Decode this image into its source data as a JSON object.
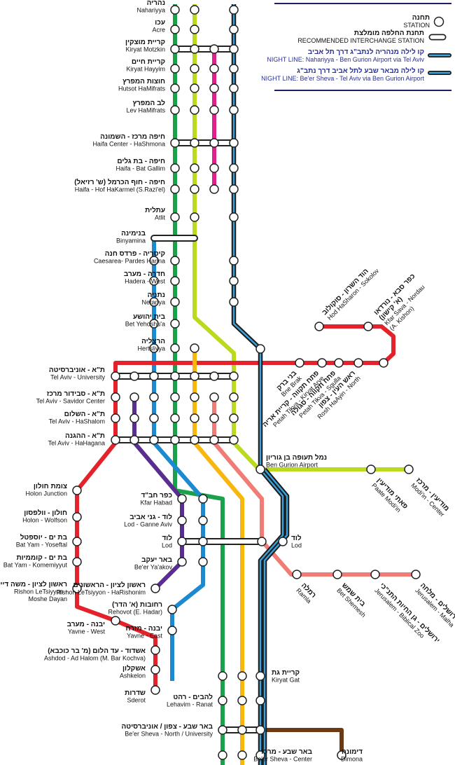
{
  "colors": {
    "green": "#1aa24a",
    "lime": "#b9da1d",
    "magenta": "#e0218c",
    "black": "#1c1c1c",
    "night_blue": "#3ea3dc",
    "blue": "#1c8ad0",
    "red": "#e3222b",
    "purple": "#5a2e91",
    "orange": "#f7b70d",
    "salmon": "#f07c75",
    "brown": "#6b3a12",
    "navy": "#1e2065"
  },
  "legend": {
    "station_he": "תחנה",
    "station_en": "STATION",
    "interchange_he": "תחנת החלפה מומלצת",
    "interchange_en": "RECOMMENDED INTERCHANGE STATION",
    "night1_he": "קו לילה מנהריה לנתב\"ג דרך תל אביב",
    "night1_en": "NIGHT LINE: Nahariyya - Ben Gurion Airport via Tel Aviv",
    "night2_he": "קו לילה מבאר שבע לתל אביב דרך נתב\"ג",
    "night2_en": "NIGHT LINE: Be'er Sheva - Tel Aviv via Ben Gurion Airport"
  },
  "stations": {
    "nahariya": {
      "he": "נהריה",
      "en": "Nahariyya"
    },
    "acre": {
      "he": "עכו",
      "en": "Acre"
    },
    "kiryat_motzkin": {
      "he": "קריית מוצקין",
      "en": "Kiryat Motzkin"
    },
    "kiryat_hayyim": {
      "he": "קריית חיים",
      "en": "Kiryat Hayyim"
    },
    "hutsot": {
      "he": "חוצות המפרץ",
      "en": "Hutsot HaMifrats"
    },
    "lev_hamifrats": {
      "he": "לב המפרץ",
      "en": "Lev HaMifrats"
    },
    "haifa_center": {
      "he": "חיפה מרכז - השמונה",
      "en": "Haifa Center - HaShmona"
    },
    "bat_gallim": {
      "he": "חיפה - בת גלים",
      "en": "Haifa - Bat Gallim"
    },
    "hof_hakarmel": {
      "he": "חיפה - חוף הכרמל (ש' רזיאל)",
      "en": "Haifa - Hof HaKarmel (S.Razi'el)"
    },
    "atlit": {
      "he": "עתלית",
      "en": "Atlit"
    },
    "binyamina": {
      "he": "בנימינה",
      "en": "Binyamina"
    },
    "caesarea": {
      "he": "קיסריה - פרדס חנה",
      "en": "Caesarea- Pardes Hanna"
    },
    "hadera": {
      "he": "חדרה - מערב",
      "en": "Hadera - West"
    },
    "netanya": {
      "he": "נתניה",
      "en": "Netanya"
    },
    "bet_yehoshua": {
      "he": "בית יהושע",
      "en": "Bet Yehoshu'a"
    },
    "herzliya": {
      "he": "הרצליה",
      "en": "Hertsliyya"
    },
    "ta_university": {
      "he": "ת\"א - אוניברסיטה",
      "en": "Tel Aviv - University"
    },
    "ta_savidor": {
      "he": "ת\"א - סבידור מרכז",
      "en": "Tel Aviv - Savidor Center"
    },
    "ta_hashalom": {
      "he": "ת\"א - השלום",
      "en": "Tel Aviv - HaShalom"
    },
    "ta_hahagana": {
      "he": "ת\"א - ההגנה",
      "en": "Tel Aviv - HaHagana"
    },
    "holon_junction": {
      "he": "צומת חולון",
      "en": "Holon Junction"
    },
    "holon_wolfson": {
      "he": "חולון - וולפסון",
      "en": "Holon - Wolfson"
    },
    "bat_yam_yoseftal": {
      "he": "בת ים - יוספטל",
      "en": "Bat Yam - Yoseftal"
    },
    "bat_yam_komemiyut": {
      "he": "בת ים - קוממיות",
      "en": "Bat Yam - Komemiyyut"
    },
    "rishon_moshe_dayan": {
      "he": "ראשון לציון - משה דיין",
      "en": "Rishon LeTsiyyon -",
      "en2": "Moshe Dayan"
    },
    "yavne_west": {
      "he": "יבנה - מערב",
      "en": "Yavne - West"
    },
    "ashdod": {
      "he": "אשדוד - עד הלום (מ' בר כוכבא)",
      "en": "Ashdod - Ad Halom (M. Bar Kochva)"
    },
    "ashkelon": {
      "he": "אשקלון",
      "en": "Ashkelon"
    },
    "sderot": {
      "he": "שדרות",
      "en": "Sderot"
    },
    "kfar_habad": {
      "he": "כפר חב\"ד",
      "en": "Kfar Habad"
    },
    "lod_ganne_aviv": {
      "he": "לוד - גני אביב",
      "en": "Lod - Ganne Aviv"
    },
    "lod_left": {
      "he": "לוד",
      "en": "Lod"
    },
    "beer_yaakov": {
      "he": "באר יעקב",
      "en": "Be'er Ya'akov"
    },
    "rishon_harishonim": {
      "he": "ראשון לציון - הראשונים",
      "en": "Rishon LeTsiyyon - HaRishonim"
    },
    "rehovot": {
      "he": "רחובות (א' הדר)",
      "en": "Rehovot (E. Hadar)"
    },
    "yavne_east": {
      "he": "יבנה - מזרח",
      "en": "Yavne - East"
    },
    "lehavim": {
      "he": "להבים - רהט",
      "en": "Lehavim - Ranat"
    },
    "beer_sheva_north": {
      "he": "באר שבע - צפון / אוניברסיטה",
      "en": "Be'er Sheva - North / University"
    },
    "beer_sheva_center": {
      "he": "באר שבע - מרכז",
      "en": "Be'er Sheva - Center"
    },
    "dimona": {
      "he": "דימונה",
      "en": "Dimona"
    },
    "kiryat_gat": {
      "he": "קריית גת",
      "en": "Kiryat Gat"
    },
    "lod_right": {
      "he": "לוד",
      "en": "Lod"
    },
    "ben_gurion": {
      "he": "נמל תעופה בן גוריון",
      "en": "Ben Gurion Airport"
    },
    "bne_brak": {
      "he": "בני ברק",
      "en": "Bne Brak"
    },
    "pt_kiryat_arye": {
      "he": "פתח תקווה - קריית אריה",
      "en": "Petah Tikva - Kiryat Arye"
    },
    "pt_sgulla": {
      "he": "פתח תקווה - סגולה",
      "en": "Petah Tikva - Sgulla"
    },
    "rosh_haayin": {
      "he": "ראש העין - צפון",
      "en": "Rosh HaAyin - North"
    },
    "kfar_sava": {
      "he": "כפר סבא - נורדאו",
      "he2": "(א' קישון)",
      "en": "Kfar Sava - Nordau",
      "en2": "(A. Kishon)"
    },
    "hod_hasharon": {
      "he": "הוד השרון - סוקולוב",
      "en": "Hod HaSharon - Sokolov"
    },
    "paate_modiin": {
      "he": "פאתי מודיעין",
      "en": "Paate Modi'in"
    },
    "modiin_center": {
      "he": "מודיעין - מרכז",
      "en": "Modi'in - Center"
    },
    "ramla": {
      "he": "רמלה",
      "en": "Ramla"
    },
    "bet_shemesh": {
      "he": "בית שמש",
      "en": "Bet Shemesh"
    },
    "jerusalem_zoo": {
      "he": "ירושלים - גן החיות התנ\"כי",
      "en": "Jerusalem - Biblical Zoo"
    },
    "jerusalem_malha": {
      "he": "ירושלים - מלחה",
      "en": "Jerusalem - Malha"
    }
  }
}
